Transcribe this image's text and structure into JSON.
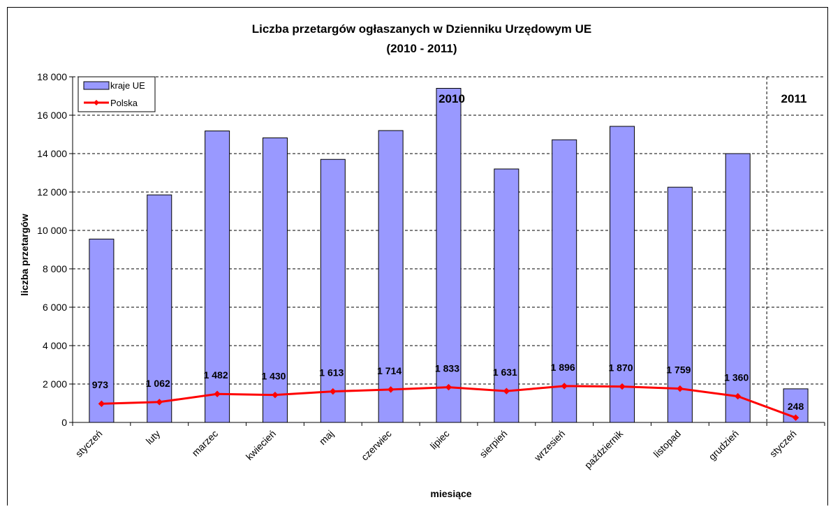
{
  "chart_data": {
    "type": "bar",
    "title": "Liczba przetargów ogłaszanych w Dzienniku Urzędowym UE",
    "subtitle": "(2010 - 2011)",
    "xlabel": "miesiące",
    "ylabel": "liczba przetargów",
    "ylim": [
      0,
      18000
    ],
    "yticks": [
      "0",
      "2 000",
      "4 000",
      "6 000",
      "8 000",
      "10 000",
      "12 000",
      "14 000",
      "16 000",
      "18 000"
    ],
    "categories": [
      "styczeń",
      "luty",
      "marzec",
      "kwiecień",
      "maj",
      "czerwiec",
      "lipiec",
      "sierpień",
      "wrzesień",
      "październik",
      "listopad",
      "grudzień",
      "styczeń"
    ],
    "series": [
      {
        "name": "kraje UE",
        "type": "bar",
        "color": "#9999ff",
        "values": [
          9550,
          11850,
          15180,
          14820,
          13700,
          15200,
          17400,
          13200,
          14720,
          15420,
          12250,
          14000,
          1750
        ]
      },
      {
        "name": "Polska",
        "type": "line",
        "color": "#ff0000",
        "values": [
          973,
          1062,
          1482,
          1430,
          1613,
          1714,
          1833,
          1631,
          1896,
          1870,
          1759,
          1360,
          248
        ]
      }
    ],
    "data_labels": [
      "973",
      "1 062",
      "1 482",
      "1 430",
      "1 613",
      "1 714",
      "1 833",
      "1 631",
      "1 896",
      "1 870",
      "1 759",
      "1 360",
      "248"
    ],
    "year_labels": [
      "2010",
      "2011"
    ],
    "legend_position": "top-left",
    "grid": "horizontal dashed"
  }
}
